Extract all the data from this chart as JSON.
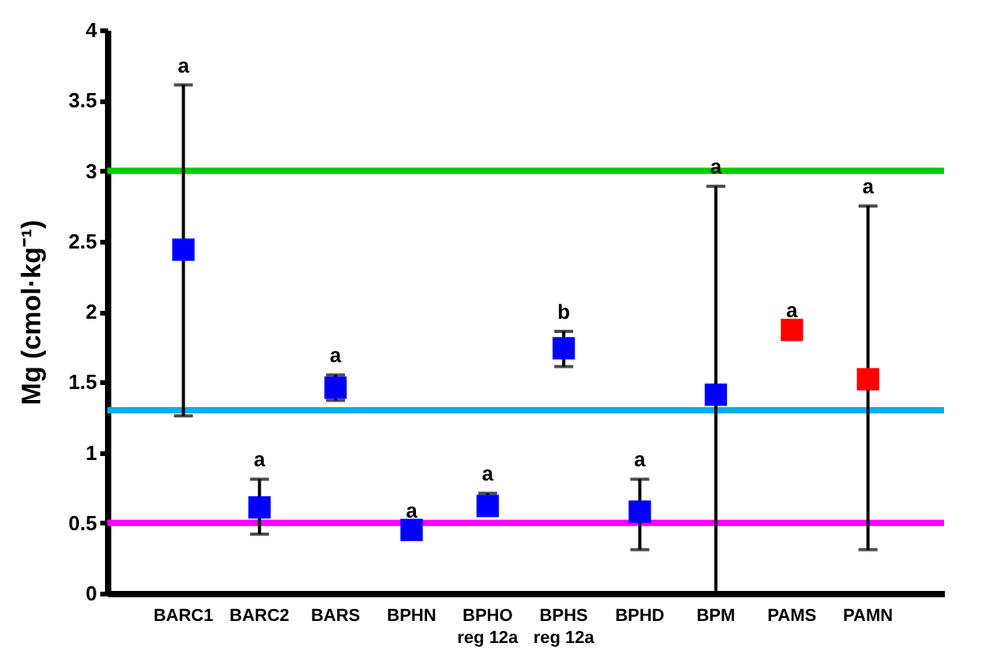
{
  "chart_data": {
    "type": "scatter",
    "ylabel": "Mg (cmol·kg⁻¹)",
    "categories": [
      "BARC1",
      "BARC2",
      "BARS",
      "BPHN",
      "BPHO\nreg 12a",
      "BPHS\nreg 12a",
      "BPHD",
      "BPM",
      "PAMS",
      "PAMN"
    ],
    "values": [
      2.44,
      0.61,
      1.46,
      0.45,
      0.62,
      1.74,
      0.58,
      1.41,
      1.87,
      1.52
    ],
    "colors": [
      "#0000ff",
      "#0000ff",
      "#0000ff",
      "#0000ff",
      "#0000ff",
      "#0000ff",
      "#0000ff",
      "#0000ff",
      "#ff0000",
      "#ff0000"
    ],
    "errors": [
      [
        1.26,
        3.61
      ],
      [
        0.42,
        0.81
      ],
      [
        1.37,
        1.55
      ],
      null,
      [
        0.57,
        0.71
      ],
      [
        1.61,
        1.86
      ],
      [
        0.31,
        0.81
      ],
      [
        0,
        2.89
      ],
      null,
      [
        0.31,
        2.75
      ]
    ],
    "marker": "square",
    "grid": false,
    "ylim": [
      0,
      4
    ],
    "yticks": [
      0,
      0.5,
      1,
      1.5,
      2,
      2.5,
      3,
      3.5,
      4
    ],
    "ref_lines": [
      {
        "axis": "y",
        "value": 3,
        "color": "#00cc00"
      },
      {
        "axis": "y",
        "value": 1.3,
        "color": "#00b0f0"
      },
      {
        "axis": "y",
        "value": 0.5,
        "color": "#ff00ff"
      }
    ],
    "annotations": [
      {
        "text": "a",
        "x": "BARC1",
        "y": 3.61
      },
      {
        "text": "a",
        "x": "BARC2",
        "y": 0.81
      },
      {
        "text": "a",
        "x": "BARS",
        "y": 1.55
      },
      {
        "text": "a",
        "x": "BPHN",
        "y": 0.45
      },
      {
        "text": "a",
        "x": "BPHO\nreg 12a",
        "y": 0.71
      },
      {
        "text": "b",
        "x": "BPHS\nreg 12a",
        "y": 1.86
      },
      {
        "text": "a",
        "x": "BPHD",
        "y": 0.81
      },
      {
        "text": "a",
        "x": "BPM",
        "y": 2.89
      },
      {
        "text": "a",
        "x": "PAMS",
        "y": 1.87
      },
      {
        "text": "a",
        "x": "PAMN",
        "y": 2.75
      }
    ]
  }
}
